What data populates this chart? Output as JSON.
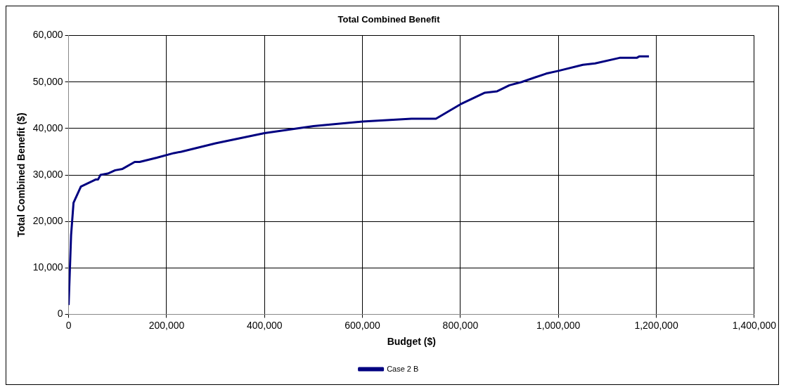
{
  "chart_data": {
    "type": "line",
    "title": "Total Combined Benefit",
    "xlabel": "Budget ($)",
    "ylabel": "Total Combined Benefit ($)",
    "xlim": [
      0,
      1400000
    ],
    "xticks": [
      {
        "value": 0,
        "label": "0"
      },
      {
        "value": 200000,
        "label": "200,000"
      },
      {
        "value": 400000,
        "label": "400,000"
      },
      {
        "value": 600000,
        "label": "600,000"
      },
      {
        "value": 800000,
        "label": "800,000"
      },
      {
        "value": 1000000,
        "label": "1,000,000"
      },
      {
        "value": 1200000,
        "label": "1,200,000"
      },
      {
        "value": 1400000,
        "label": "1,400,000"
      }
    ],
    "ylim": [
      0,
      60000
    ],
    "yticks": [
      {
        "value": 0,
        "label": "0"
      },
      {
        "value": 10000,
        "label": "10,000"
      },
      {
        "value": 20000,
        "label": "20,000"
      },
      {
        "value": 30000,
        "label": "30,000"
      },
      {
        "value": 40000,
        "label": "40,000"
      },
      {
        "value": 50000,
        "label": "50,000"
      },
      {
        "value": 60000,
        "label": "60,000"
      }
    ],
    "x": [
      0,
      5000,
      10000,
      25000,
      55000,
      60000,
      65000,
      80000,
      95000,
      110000,
      135000,
      145000,
      180000,
      215000,
      230000,
      300000,
      400000,
      500000,
      600000,
      700000,
      750000,
      800000,
      850000,
      875000,
      900000,
      925000,
      975000,
      1000000,
      1050000,
      1075000,
      1125000,
      1160000,
      1165000,
      1185000
    ],
    "series": [
      {
        "name": "Case 2 B",
        "color": "#000080",
        "values": [
          2000,
          17000,
          24000,
          27500,
          29000,
          29000,
          30000,
          30300,
          31000,
          31300,
          32800,
          32800,
          33700,
          34700,
          35000,
          36800,
          39000,
          40500,
          41500,
          42100,
          42100,
          45200,
          47700,
          48000,
          49300,
          50000,
          51800,
          52400,
          53700,
          54000,
          55200,
          55200,
          55500,
          55500
        ]
      }
    ],
    "grid": true,
    "legend": "bottom",
    "marker": "none",
    "line_style": "solid"
  }
}
